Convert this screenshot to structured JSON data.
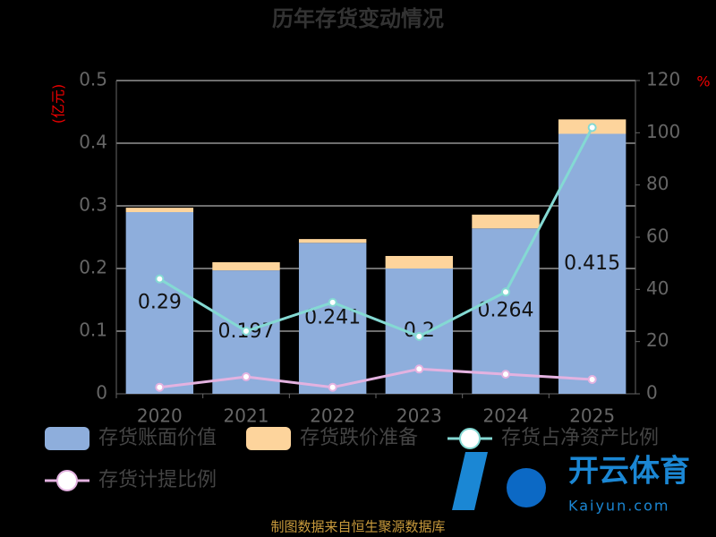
{
  "chart_data": {
    "type": "bar",
    "title": "历年存货变动情况",
    "y_label": "(亿元)",
    "y2_label": "%",
    "categories": [
      "2020",
      "2021",
      "2022",
      "2023",
      "2024",
      "2025"
    ],
    "series": [
      {
        "name": "存货账面价值",
        "type": "bar",
        "color": "#8eaedc",
        "values": [
          0.29,
          0.197,
          0.241,
          0.2,
          0.264,
          0.415
        ]
      },
      {
        "name": "存货跌价准备",
        "type": "bar",
        "color": "#fdd49c",
        "values": [
          0.007,
          0.013,
          0.006,
          0.02,
          0.022,
          0.023
        ]
      },
      {
        "name": "存货占净资产比例",
        "type": "line",
        "axis": "y2",
        "color": "#84d9d3",
        "values": [
          44,
          24,
          35,
          22,
          39,
          102
        ]
      },
      {
        "name": "存货计提比例",
        "type": "line",
        "axis": "y2",
        "color": "#e3b2e0",
        "values": [
          2.5,
          6.5,
          2.5,
          9.5,
          7.5,
          5.5
        ]
      }
    ],
    "ylim": [
      0,
      0.5
    ],
    "yticks": [
      0,
      0.1,
      0.2,
      0.3,
      0.4,
      0.5
    ],
    "y2lim": [
      0,
      120
    ],
    "y2ticks": [
      0,
      20,
      40,
      60,
      80,
      100,
      120
    ],
    "grid": true,
    "source": "制图数据来自恒生聚源数据库"
  },
  "watermark": {
    "brand": "开云体育",
    "url": "Kaiyun.com"
  }
}
